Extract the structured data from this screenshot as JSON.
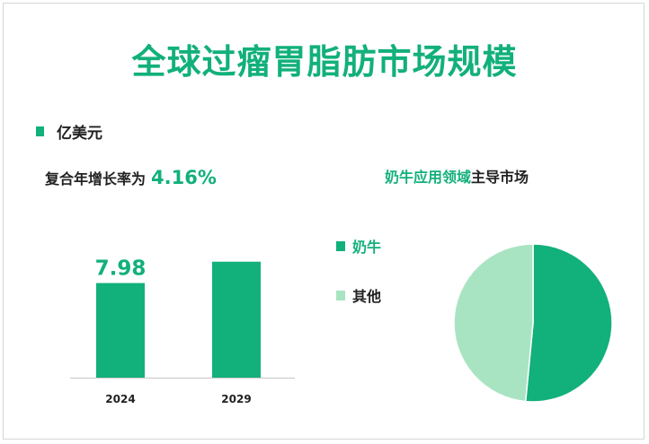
{
  "title": "全球过瘤胃脂肪市场规模",
  "unit_legend": {
    "label": "亿美元",
    "color": "#12b07a"
  },
  "cagr": {
    "label": "复合年增长率为",
    "value": "4.16%"
  },
  "pie_title": {
    "highlight": "奶牛应用领域",
    "rest": "主导市场"
  },
  "pie_legend": [
    {
      "label": "奶牛",
      "color": "#12b07a",
      "text_color": "#12b07a"
    },
    {
      "label": "其他",
      "color": "#a9e4c2",
      "text_color": "#222222"
    }
  ],
  "chart_data": [
    {
      "type": "bar",
      "categories": [
        "2024",
        "2029"
      ],
      "values": [
        7.98,
        9.78
      ],
      "data_labels": [
        "7.98",
        ""
      ],
      "color": "#12b07a",
      "ylim": [
        0,
        11.2
      ]
    },
    {
      "type": "pie",
      "labels": [
        "奶牛",
        "其他"
      ],
      "values": [
        51.5,
        48.5
      ],
      "colors": [
        "#12b07a",
        "#a9e4c2"
      ]
    }
  ]
}
